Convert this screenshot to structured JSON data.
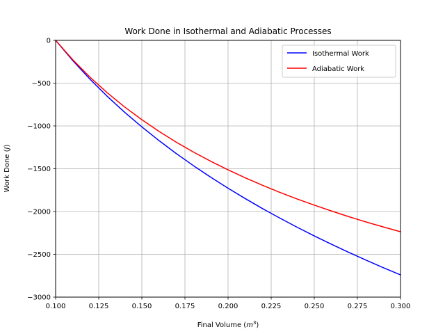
{
  "chart_data": {
    "type": "line",
    "title": "Work Done in Isothermal and Adiabatic Processes",
    "xlabel": "Final Volume (m³)",
    "xlabel_main": "Final Volume (",
    "xlabel_unit": "m",
    "xlabel_exp": "3",
    "xlabel_close": ")",
    "ylabel": "Work Done (J)",
    "ylabel_main": "Work Done (",
    "ylabel_unit": "J",
    "ylabel_close": ")",
    "xlim": [
      0.1,
      0.3
    ],
    "ylim": [
      -3000,
      0
    ],
    "xticks": [
      0.1,
      0.125,
      0.15,
      0.175,
      0.2,
      0.225,
      0.25,
      0.275,
      0.3
    ],
    "xtick_labels": [
      "0.100",
      "0.125",
      "0.150",
      "0.175",
      "0.200",
      "0.225",
      "0.250",
      "0.275",
      "0.300"
    ],
    "yticks": [
      0,
      -500,
      -1000,
      -1500,
      -2000,
      -2500,
      -3000
    ],
    "ytick_labels": [
      "0",
      "−500",
      "−1000",
      "−1500",
      "−2000",
      "−2500",
      "−3000"
    ],
    "grid": true,
    "legend_position": "top-right",
    "series": [
      {
        "name": "Isothermal Work",
        "color": "#0000ff",
        "x": [
          0.1,
          0.11,
          0.12,
          0.13,
          0.14,
          0.15,
          0.16,
          0.17,
          0.18,
          0.19,
          0.2,
          0.21,
          0.22,
          0.23,
          0.24,
          0.25,
          0.26,
          0.27,
          0.28,
          0.29,
          0.3
        ],
        "y": [
          0,
          -238,
          -455,
          -655,
          -840,
          -1011,
          -1172,
          -1323,
          -1465,
          -1600,
          -1728,
          -1849,
          -1966,
          -2076,
          -2183,
          -2285,
          -2383,
          -2477,
          -2568,
          -2656,
          -2740
        ]
      },
      {
        "name": "Adiabatic Work",
        "color": "#ff0000",
        "x": [
          0.1,
          0.11,
          0.12,
          0.13,
          0.14,
          0.15,
          0.16,
          0.17,
          0.18,
          0.19,
          0.2,
          0.21,
          0.22,
          0.23,
          0.24,
          0.25,
          0.26,
          0.27,
          0.28,
          0.29,
          0.3
        ],
        "y": [
          0,
          -228,
          -431,
          -613,
          -778,
          -927,
          -1064,
          -1190,
          -1306,
          -1413,
          -1513,
          -1606,
          -1694,
          -1776,
          -1853,
          -1925,
          -1994,
          -2060,
          -2122,
          -2180,
          -2236
        ]
      }
    ]
  }
}
